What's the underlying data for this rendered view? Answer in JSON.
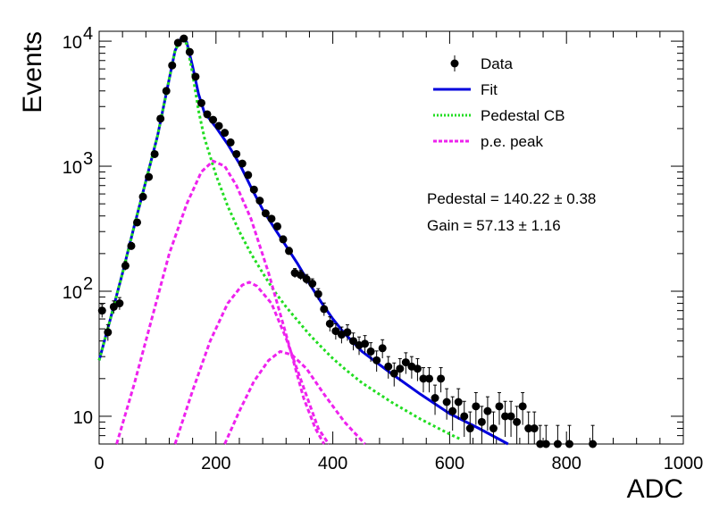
{
  "chart_data": {
    "type": "scatter",
    "xlabel": "ADC",
    "ylabel": "Events",
    "xlim": [
      0,
      1000
    ],
    "ylim": [
      6,
      12000
    ],
    "y_scale": "log",
    "grid": false,
    "legend_position": "top-right",
    "x_ticks": [
      "0",
      "200",
      "400",
      "600",
      "800",
      "1000"
    ],
    "y_ticks": [
      {
        "value": 10,
        "label": "10"
      },
      {
        "value": 100,
        "label": "10",
        "exponent": "2"
      },
      {
        "value": 1000,
        "label": "10",
        "exponent": "3"
      },
      {
        "value": 10000,
        "label": "10",
        "exponent": "4"
      }
    ],
    "legend": [
      {
        "label": "Data",
        "color": "#000000",
        "style": "marker"
      },
      {
        "label": "Fit",
        "color": "#0000dd",
        "style": "solid"
      },
      {
        "label": "Pedestal CB",
        "color": "#22dd22",
        "style": "dotted"
      },
      {
        "label": "p.e. peak",
        "color": "#ee22ee",
        "style": "dashed"
      }
    ],
    "annotations": [
      {
        "name": "pedestal",
        "text": "Pedestal = 140.22 ± 0.38"
      },
      {
        "name": "gain",
        "text": "Gain = 57.13 ± 1.16"
      }
    ],
    "series": [
      {
        "name": "Data",
        "color": "#000000",
        "points": [
          [
            5,
            70
          ],
          [
            15,
            47
          ],
          [
            25,
            75
          ],
          [
            35,
            80
          ],
          [
            45,
            160
          ],
          [
            55,
            230
          ],
          [
            65,
            355
          ],
          [
            75,
            570
          ],
          [
            85,
            820
          ],
          [
            95,
            1250
          ],
          [
            105,
            2400
          ],
          [
            115,
            4000
          ],
          [
            125,
            6400
          ],
          [
            135,
            9700
          ],
          [
            145,
            10500
          ],
          [
            155,
            8200
          ],
          [
            165,
            5200
          ],
          [
            175,
            3200
          ],
          [
            185,
            2600
          ],
          [
            195,
            2350
          ],
          [
            205,
            2100
          ],
          [
            215,
            1850
          ],
          [
            225,
            1550
          ],
          [
            235,
            1250
          ],
          [
            245,
            1050
          ],
          [
            255,
            850
          ],
          [
            265,
            650
          ],
          [
            275,
            530
          ],
          [
            285,
            420
          ],
          [
            295,
            380
          ],
          [
            305,
            330
          ],
          [
            315,
            260
          ],
          [
            325,
            210
          ],
          [
            335,
            140
          ],
          [
            345,
            135
          ],
          [
            355,
            125
          ],
          [
            365,
            115
          ],
          [
            375,
            95
          ],
          [
            385,
            72
          ],
          [
            395,
            55
          ],
          [
            405,
            48
          ],
          [
            415,
            45
          ],
          [
            425,
            47
          ],
          [
            435,
            40
          ],
          [
            445,
            37
          ],
          [
            455,
            38
          ],
          [
            465,
            33
          ],
          [
            475,
            28
          ],
          [
            485,
            35
          ],
          [
            495,
            25
          ],
          [
            505,
            22
          ],
          [
            515,
            24
          ],
          [
            525,
            27
          ],
          [
            535,
            25
          ],
          [
            545,
            24
          ],
          [
            555,
            20
          ],
          [
            565,
            20
          ],
          [
            575,
            14
          ],
          [
            585,
            20
          ],
          [
            595,
            13
          ],
          [
            605,
            11
          ],
          [
            615,
            13
          ],
          [
            625,
            10
          ],
          [
            635,
            8
          ],
          [
            645,
            12
          ],
          [
            655,
            9
          ],
          [
            665,
            11
          ],
          [
            675,
            8
          ],
          [
            685,
            12
          ],
          [
            695,
            10
          ],
          [
            705,
            10
          ],
          [
            715,
            9
          ],
          [
            725,
            12
          ],
          [
            735,
            8
          ],
          [
            745,
            8
          ],
          [
            755,
            6
          ],
          [
            765,
            6
          ],
          [
            785,
            6
          ],
          [
            805,
            6
          ],
          [
            845,
            6
          ]
        ]
      },
      {
        "name": "Fit",
        "color": "#0000dd",
        "points": [
          [
            0,
            28
          ],
          [
            20,
            62
          ],
          [
            40,
            140
          ],
          [
            60,
            330
          ],
          [
            80,
            760
          ],
          [
            100,
            1750
          ],
          [
            120,
            5000
          ],
          [
            130,
            8400
          ],
          [
            140,
            10500
          ],
          [
            150,
            9800
          ],
          [
            160,
            6300
          ],
          [
            170,
            3800
          ],
          [
            180,
            2700
          ],
          [
            200,
            2050
          ],
          [
            220,
            1500
          ],
          [
            240,
            1050
          ],
          [
            260,
            680
          ],
          [
            280,
            450
          ],
          [
            300,
            320
          ],
          [
            320,
            230
          ],
          [
            340,
            165
          ],
          [
            360,
            115
          ],
          [
            380,
            82
          ],
          [
            400,
            60
          ],
          [
            420,
            46
          ],
          [
            450,
            33
          ],
          [
            500,
            22
          ],
          [
            550,
            15
          ],
          [
            600,
            10.5
          ],
          [
            650,
            8
          ],
          [
            700,
            6
          ]
        ]
      },
      {
        "name": "Pedestal CB",
        "color": "#22dd22",
        "points": [
          [
            0,
            28
          ],
          [
            20,
            62
          ],
          [
            40,
            140
          ],
          [
            60,
            330
          ],
          [
            80,
            760
          ],
          [
            100,
            1750
          ],
          [
            120,
            5000
          ],
          [
            130,
            8400
          ],
          [
            140,
            10400
          ],
          [
            150,
            9500
          ],
          [
            160,
            5500
          ],
          [
            170,
            2800
          ],
          [
            180,
            1700
          ],
          [
            200,
            850
          ],
          [
            220,
            480
          ],
          [
            240,
            300
          ],
          [
            260,
            200
          ],
          [
            280,
            140
          ],
          [
            300,
            100
          ],
          [
            320,
            75
          ],
          [
            340,
            58
          ],
          [
            360,
            45
          ],
          [
            380,
            36
          ],
          [
            400,
            29
          ],
          [
            420,
            24
          ],
          [
            450,
            18.5
          ],
          [
            500,
            13
          ],
          [
            550,
            9.5
          ],
          [
            600,
            7.2
          ],
          [
            620,
            6.5
          ]
        ]
      },
      {
        "name": "p.e. peak 1",
        "color": "#ee22ee",
        "points": [
          [
            30,
            6
          ],
          [
            60,
            18
          ],
          [
            90,
            60
          ],
          [
            120,
            200
          ],
          [
            150,
            500
          ],
          [
            175,
            900
          ],
          [
            195,
            1100
          ],
          [
            215,
            1000
          ],
          [
            235,
            700
          ],
          [
            260,
            380
          ],
          [
            290,
            140
          ],
          [
            320,
            45
          ],
          [
            350,
            14
          ],
          [
            370,
            8
          ],
          [
            385,
            6
          ]
        ]
      },
      {
        "name": "p.e. peak 2",
        "color": "#ee22ee",
        "points": [
          [
            130,
            6
          ],
          [
            160,
            16
          ],
          [
            190,
            40
          ],
          [
            220,
            80
          ],
          [
            245,
            112
          ],
          [
            257,
            118
          ],
          [
            270,
            110
          ],
          [
            295,
            80
          ],
          [
            320,
            42
          ],
          [
            350,
            17
          ],
          [
            375,
            8
          ],
          [
            393,
            6
          ]
        ]
      },
      {
        "name": "p.e. peak 3",
        "color": "#ee22ee",
        "points": [
          [
            215,
            6
          ],
          [
            240,
            11
          ],
          [
            265,
            19
          ],
          [
            290,
            28
          ],
          [
            310,
            33
          ],
          [
            330,
            31
          ],
          [
            355,
            24
          ],
          [
            385,
            15
          ],
          [
            420,
            9
          ],
          [
            455,
            6
          ]
        ]
      }
    ]
  }
}
